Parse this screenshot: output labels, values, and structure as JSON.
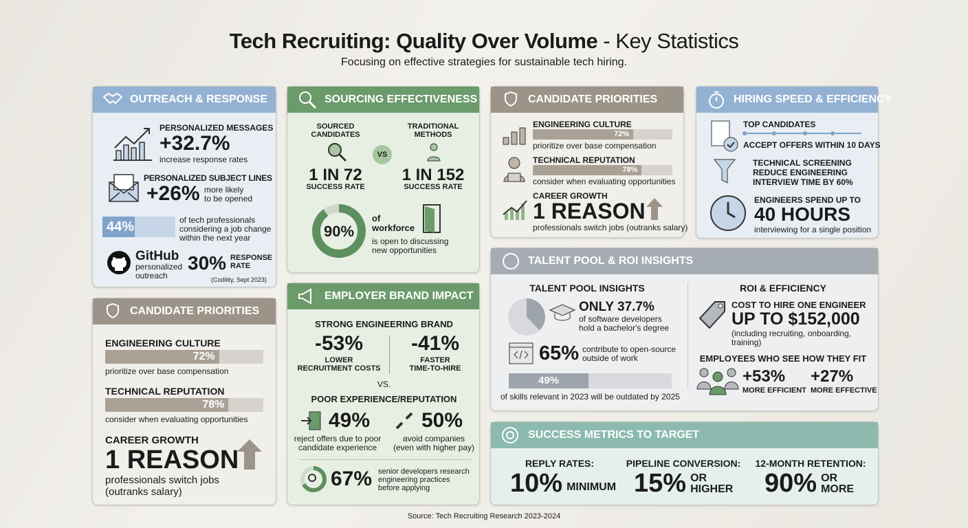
{
  "title": {
    "main": "Tech Recruiting: Quality Over Volume",
    "suffix": "- Key Statistics",
    "subtitle": "Focusing on effective strategies for sustainable tech hiring.",
    "source": "Source: Tech Recruiting Research 2023-2024"
  },
  "outreach": {
    "header": "OUTREACH & RESPONSE",
    "msg_label": "PERSONALIZED MESSAGES",
    "msg_value": "+32.7%",
    "msg_desc": "increase response rates",
    "subj_label": "PERSONALIZED SUBJECT LINES",
    "subj_value": "+26%",
    "subj_desc1": "more likely",
    "subj_desc2": "to be opened",
    "job_value": "44%",
    "job_fill": 44,
    "job_desc1": "of tech professionals",
    "job_desc2": "considering a job change",
    "job_desc3": "within the next year",
    "github": "GitHub",
    "gh_desc1": "personalized",
    "gh_desc2": "outreach",
    "gh_value": "30%",
    "gh_label1": "RESPONSE",
    "gh_label2": "RATE",
    "gh_cite": "(Codility, Sept 2023)"
  },
  "priorities_left": {
    "header": "CANDIDATE PRIORITIES",
    "culture": "ENGINEERING CULTURE",
    "culture_value": "72%",
    "culture_fill": 72,
    "culture_desc": "prioritize over base compensation",
    "rep": "TECHNICAL REPUTATION",
    "rep_value": "78%",
    "rep_fill": 78,
    "rep_desc": "consider when evaluating opportunities",
    "growth": "CAREER GROWTH",
    "growth_value": "1 REASON",
    "growth_desc1": "professionals switch jobs",
    "growth_desc2": "(outranks salary)"
  },
  "sourcing": {
    "header": "SOURCING EFFECTIVENESS",
    "left_label1": "SOURCED",
    "left_label2": "CANDIDATES",
    "left_value": "1 IN 72",
    "left_sub": "SUCCESS RATE",
    "vs": "VS",
    "right_label1": "TRADITIONAL",
    "right_label2": "METHODS",
    "right_value": "1 IN 152",
    "right_sub": "SUCCESS RATE",
    "donut_value": "90%",
    "donut_fill": 90,
    "donut_desc1": "of",
    "donut_desc2": "workforce",
    "donut_desc3": "is open to discussing",
    "donut_desc4": "new opportunities"
  },
  "brand": {
    "header": "EMPLOYER BRAND IMPACT",
    "strong": "STRONG ENGINEERING BRAND",
    "v1": "-53%",
    "l1a": "LOWER",
    "l1b": "RECRUITMENT COSTS",
    "v2": "-41%",
    "l2a": "FASTER",
    "l2b": "TIME-TO-HIRE",
    "vs": "VS.",
    "poor": "POOR EXPERIENCE/REPUTATION",
    "v3": "49%",
    "d3a": "reject offers due to poor",
    "d3b": "candidate experience",
    "v4": "50%",
    "d4a": "avoid companies",
    "d4b": "(even with higher pay)",
    "v5": "67%",
    "v5_fill": 67,
    "d5a": "senior developers research",
    "d5b": "engineering practices",
    "d5c": "before applying"
  },
  "priorities_right": {
    "header": "CANDIDATE PRIORITIES",
    "culture": "ENGINEERING CULTURE",
    "culture_value": "72%",
    "culture_fill": 72,
    "culture_desc": "prioritize over base compensation",
    "rep": "TECHNICAL REPUTATION",
    "rep_value": "78%",
    "rep_fill": 78,
    "rep_desc": "consider when evaluating opportunities",
    "growth": "CAREER GROWTH",
    "growth_value": "1 REASON",
    "growth_desc": "professionals switch jobs (outranks salary)"
  },
  "speed": {
    "header": "HIRING SPEED & EFFICIENCY",
    "top1": "TOP CANDIDATES",
    "top2": "ACCEPT OFFERS WITHIN 10 DAYS",
    "scr1": "TECHNICAL SCREENING",
    "scr2": "REDUCE ENGINEERING",
    "scr3": "INTERVIEW TIME BY 60%",
    "eng1": "ENGINEERS SPEND UP TO",
    "eng_value": "40 HOURS",
    "eng2": "interviewing for a single position"
  },
  "talent": {
    "header": "TALENT POOL & ROI INSIGHTS",
    "left_title": "TALENT POOL INSIGHTS",
    "degree_value": "ONLY 37.7%",
    "degree_fill": 37.7,
    "degree_desc1": "of software developers",
    "degree_desc2": "hold a bachelor's degree",
    "os_value": "65%",
    "os_desc1": "contribute to open-source",
    "os_desc2": "outside of work",
    "skills_value": "49%",
    "skills_fill": 49,
    "skills_desc": "of skills relevant in 2023  will be outdated by 2025",
    "right_title": "ROI & EFFICIENCY",
    "cost_label": "COST TO HIRE ONE ENGINEER",
    "cost_value": "UP TO $152,000",
    "cost_desc": "(including recruiting, onboarding, training)",
    "fit_title": "EMPLOYEES WHO SEE HOW THEY FIT",
    "fit1_value": "+53%",
    "fit1_label": "MORE EFFICIENT",
    "fit2_value": "+27%",
    "fit2_label": "MORE EFFECTIVE"
  },
  "success": {
    "header": "SUCCESS METRICS TO TARGET",
    "m1_label": "REPLY RATES:",
    "m1_value": "10%",
    "m1_suffix": "MINIMUM",
    "m2_label": "PIPELINE CONVERSION:",
    "m2_value": "15%",
    "m2_s1": "OR",
    "m2_s2": "HIGHER",
    "m3_label": "12-MONTH RETENTION:",
    "m3_value": "90%",
    "m3_s1": "OR",
    "m3_s2": "MORE"
  },
  "colors": {
    "blue": "#93b2d3",
    "taupe": "#9c9488",
    "green": "#6b9a6b",
    "gray": "#a6acb4",
    "teal": "#8cbaae"
  }
}
